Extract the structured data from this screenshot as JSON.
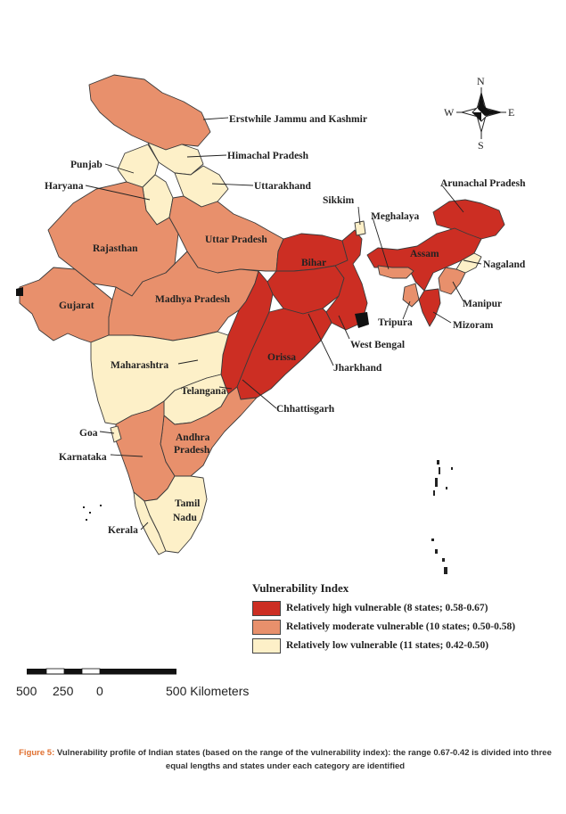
{
  "legend": {
    "title": "Vulnerability Index",
    "items": [
      {
        "label": "Relatively high vulnerable (8 states; 0.58-0.67)",
        "color": "#cc2e23"
      },
      {
        "label": "Relatively moderate vulnerable (10 states; 0.50-0.58)",
        "color": "#e8906c"
      },
      {
        "label": "Relatively low vulnerable (11 states; 0.42-0.50)",
        "color": "#fdf0c8"
      }
    ]
  },
  "states": [
    {
      "name": "Erstwhile Jammu and Kashmir",
      "category": "moderate"
    },
    {
      "name": "Himachal Pradesh",
      "category": "low"
    },
    {
      "name": "Punjab",
      "category": "low"
    },
    {
      "name": "Haryana",
      "category": "low"
    },
    {
      "name": "Uttarakhand",
      "category": "low"
    },
    {
      "name": "Rajasthan",
      "category": "moderate"
    },
    {
      "name": "Uttar Pradesh",
      "category": "moderate"
    },
    {
      "name": "Gujarat",
      "category": "moderate"
    },
    {
      "name": "Madhya Pradesh",
      "category": "moderate"
    },
    {
      "name": "Bihar",
      "category": "high"
    },
    {
      "name": "Jharkhand",
      "category": "high"
    },
    {
      "name": "West Bengal",
      "category": "high"
    },
    {
      "name": "Orissa",
      "category": "high"
    },
    {
      "name": "Chhattisgarh",
      "category": "high"
    },
    {
      "name": "Maharashtra",
      "category": "low"
    },
    {
      "name": "Telangana",
      "category": "low"
    },
    {
      "name": "Andhra Pradesh",
      "category": "moderate"
    },
    {
      "name": "Karnataka",
      "category": "moderate"
    },
    {
      "name": "Goa",
      "category": "low"
    },
    {
      "name": "Kerala",
      "category": "low"
    },
    {
      "name": "Tamil Nadu",
      "category": "low"
    },
    {
      "name": "Sikkim",
      "category": "low"
    },
    {
      "name": "Arunachal Pradesh",
      "category": "high"
    },
    {
      "name": "Assam",
      "category": "high"
    },
    {
      "name": "Meghalaya",
      "category": "moderate"
    },
    {
      "name": "Nagaland",
      "category": "low"
    },
    {
      "name": "Manipur",
      "category": "moderate"
    },
    {
      "name": "Mizoram",
      "category": "high"
    },
    {
      "name": "Tripura",
      "category": "moderate"
    }
  ],
  "labels": {
    "jk": "Erstwhile Jammu and Kashmir",
    "hp": "Himachal Pradesh",
    "punjab": "Punjab",
    "haryana": "Haryana",
    "uk": "Uttarakhand",
    "sikkim": "Sikkim",
    "arunachal": "Arunachal Pradesh",
    "meghalaya": "Meghalaya",
    "rajasthan": "Rajasthan",
    "up": "Uttar Pradesh",
    "bihar": "Bihar",
    "assam": "Assam",
    "nagaland": "Nagaland",
    "gujarat": "Gujarat",
    "mp": "Madhya Pradesh",
    "manipur": "Manipur",
    "tripura": "Tripura",
    "mizoram": "Mizoram",
    "wb": "West Bengal",
    "orissa": "Orissa",
    "jharkhand": "Jharkhand",
    "maharashtra": "Maharashtra",
    "telangana": "Telangana",
    "chhattisgarh": "Chhattisgarh",
    "goa": "Goa",
    "ap1": "Andhra",
    "ap2": "Pradesh",
    "karnataka": "Karnataka",
    "tn1": "Tamil",
    "tn2": "Nadu",
    "kerala": "Kerala"
  },
  "compass": {
    "n": "N",
    "s": "S",
    "e": "E",
    "w": "W"
  },
  "scale_bar": {
    "ticks": [
      "500",
      "250",
      "0",
      "500 Kilometers"
    ]
  },
  "caption": {
    "figure_label": "Figure 5:",
    "text": "Vulnerability profile of Indian states (based on the range of the vulnerability index): the range 0.67-0.42 is divided into three equal lengths and states under each category are identified"
  }
}
